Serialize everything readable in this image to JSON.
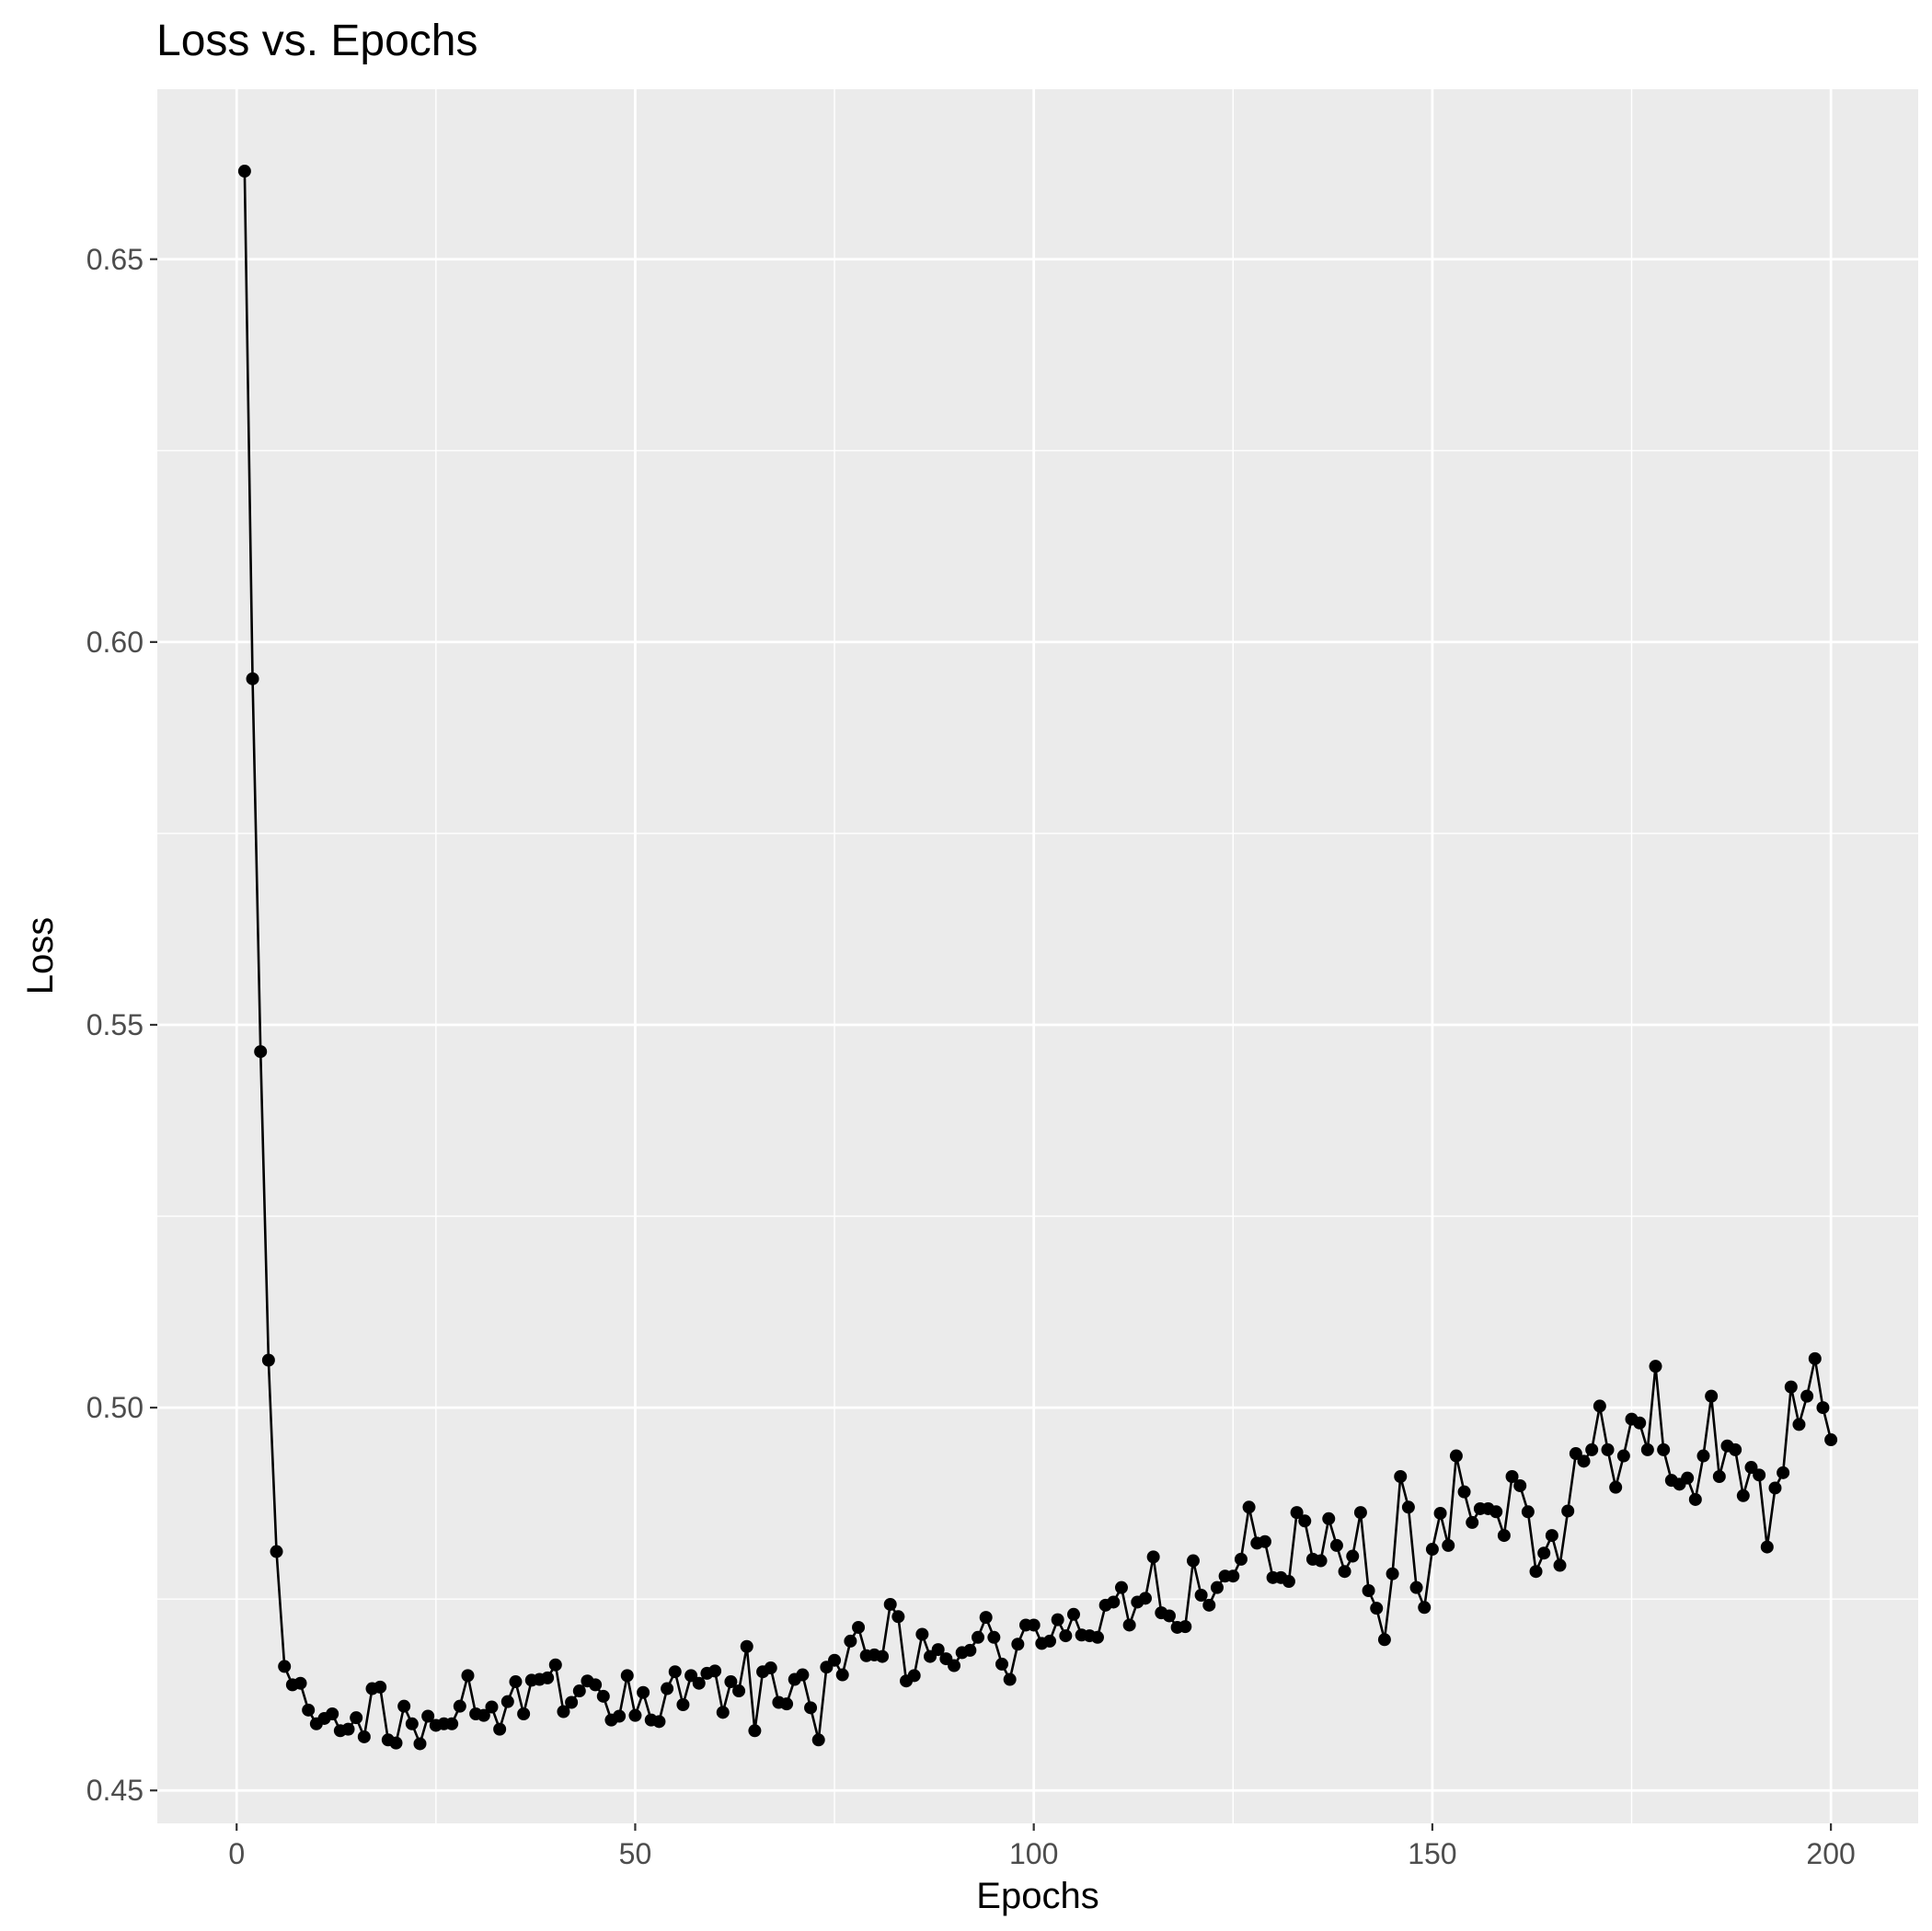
{
  "chart_data": {
    "type": "line",
    "title": "Loss vs. Epochs",
    "xlabel": "Epochs",
    "ylabel": "Loss",
    "xlim": [
      -9.95,
      210.95
    ],
    "ylim": [
      0.4457,
      0.6722
    ],
    "x_ticks": [
      0,
      50,
      100,
      150,
      200
    ],
    "y_ticks": [
      0.45,
      0.5,
      0.55,
      0.6,
      0.65
    ],
    "x_tick_labels": [
      "0",
      "50",
      "100",
      "150",
      "200"
    ],
    "y_tick_labels": [
      "0.45",
      "0.50",
      "0.55",
      "0.60",
      "0.65"
    ],
    "grid": true,
    "legend": "none",
    "colors": {
      "panel": "#ebebeb",
      "grid": "#ffffff",
      "series": "#000000"
    },
    "series": [
      {
        "markers": true,
        "values": [
          0.6615,
          0.5952,
          0.5465,
          0.5062,
          0.4812,
          0.4662,
          0.4638,
          0.464,
          0.4605,
          0.4587,
          0.4594,
          0.46,
          0.4578,
          0.458,
          0.4595,
          0.457,
          0.4633,
          0.4635,
          0.4566,
          0.4562,
          0.461,
          0.4587,
          0.4561,
          0.4597,
          0.4585,
          0.4587,
          0.4587,
          0.461,
          0.465,
          0.46,
          0.4598,
          0.4609,
          0.458,
          0.4616,
          0.4642,
          0.46,
          0.4644,
          0.4645,
          0.4647,
          0.4664,
          0.4603,
          0.4615,
          0.463,
          0.4643,
          0.4638,
          0.4623,
          0.4592,
          0.4597,
          0.465,
          0.4598,
          0.4628,
          0.4592,
          0.459,
          0.4633,
          0.4655,
          0.4612,
          0.465,
          0.464,
          0.4653,
          0.4656,
          0.4602,
          0.4642,
          0.463,
          0.4688,
          0.4578,
          0.4655,
          0.466,
          0.4615,
          0.4613,
          0.4645,
          0.4651,
          0.4608,
          0.4566,
          0.4661,
          0.467,
          0.4651,
          0.4695,
          0.4713,
          0.4676,
          0.4677,
          0.4675,
          0.4743,
          0.4727,
          0.4643,
          0.465,
          0.4704,
          0.4675,
          0.4684,
          0.4672,
          0.4663,
          0.468,
          0.4683,
          0.47,
          0.4726,
          0.47,
          0.4665,
          0.4645,
          0.4691,
          0.4716,
          0.4716,
          0.4692,
          0.4695,
          0.4723,
          0.4702,
          0.473,
          0.4703,
          0.4702,
          0.47,
          0.4742,
          0.4746,
          0.4765,
          0.4716,
          0.4746,
          0.4751,
          0.4805,
          0.4732,
          0.4728,
          0.4713,
          0.4714,
          0.48,
          0.4755,
          0.4742,
          0.4765,
          0.478,
          0.478,
          0.4802,
          0.487,
          0.4823,
          0.4825,
          0.4778,
          0.4778,
          0.4773,
          0.4863,
          0.4852,
          0.4802,
          0.48,
          0.4855,
          0.482,
          0.4786,
          0.4806,
          0.4863,
          0.4761,
          0.4738,
          0.4697,
          0.4783,
          0.491,
          0.487,
          0.4765,
          0.4739,
          0.4815,
          0.4862,
          0.482,
          0.4937,
          0.489,
          0.485,
          0.4868,
          0.4868,
          0.4864,
          0.4833,
          0.491,
          0.4898,
          0.4864,
          0.4786,
          0.481,
          0.4833,
          0.4794,
          0.4865,
          0.494,
          0.493,
          0.4945,
          0.5002,
          0.4945,
          0.4896,
          0.4937,
          0.4985,
          0.498,
          0.4945,
          0.5054,
          0.4945,
          0.4905,
          0.49,
          0.4908,
          0.488,
          0.4937,
          0.5015,
          0.491,
          0.495,
          0.4945,
          0.4885,
          0.4922,
          0.4912,
          0.4818,
          0.4895,
          0.4915,
          0.5027,
          0.4978,
          0.5015,
          0.5064,
          0.5,
          0.4958
        ]
      }
    ]
  }
}
